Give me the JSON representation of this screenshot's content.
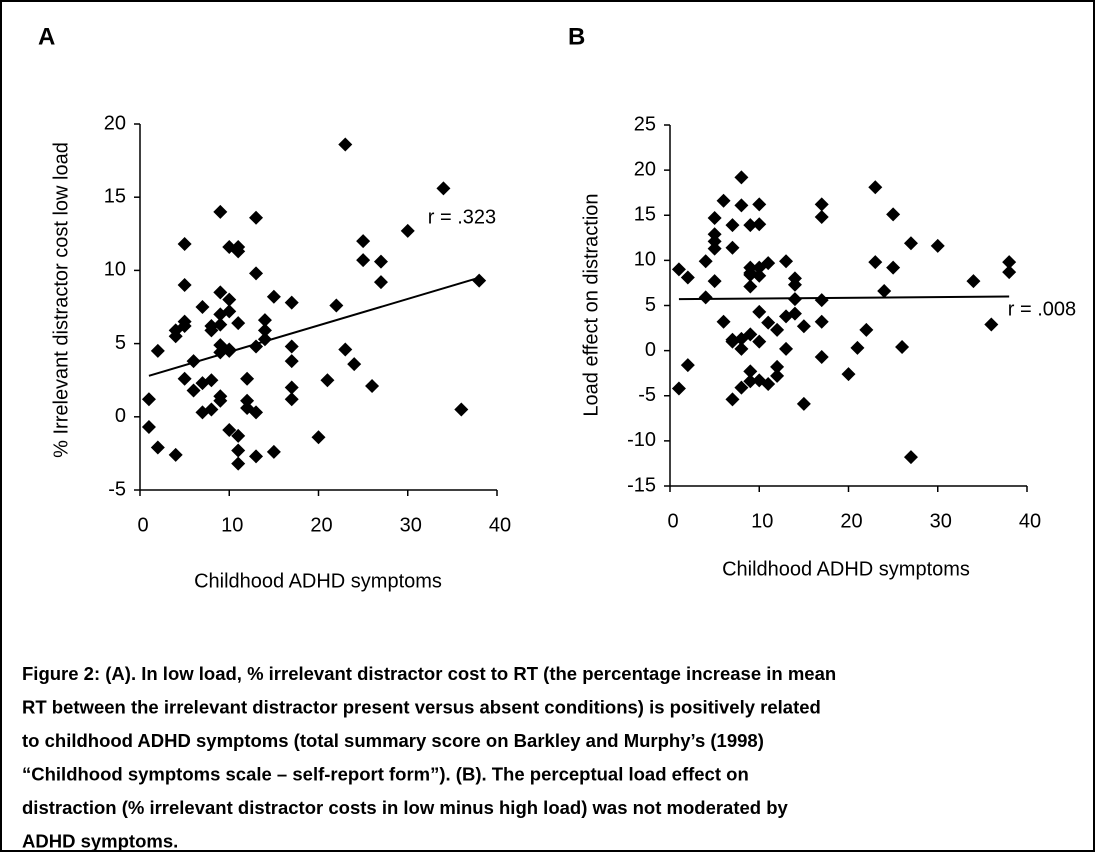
{
  "chart_data": [
    {
      "type": "scatter",
      "panel": "A",
      "xlabel": "Childhood ADHD symptoms",
      "ylabel": "% Irrelevant distractor cost low load",
      "color": "#000000",
      "annotation": "r = .323",
      "trendline": {
        "x": [
          1,
          38
        ],
        "values": [
          2.8,
          9.5
        ]
      },
      "xlim": [
        0,
        40
      ],
      "xticks": [
        0,
        10,
        20,
        30,
        40
      ],
      "ylim": [
        -5,
        20
      ],
      "yticks": [
        -5,
        0,
        5,
        10,
        15,
        20
      ],
      "x": [
        1,
        1,
        2,
        2,
        4,
        4,
        4,
        5,
        5,
        5,
        5,
        5,
        6,
        6,
        7,
        7,
        7,
        8,
        8,
        8,
        8,
        9,
        9,
        9,
        9,
        9,
        9,
        9,
        9,
        10,
        10,
        10,
        10,
        10,
        10,
        11,
        11,
        11,
        11,
        11,
        11,
        12,
        12,
        12,
        13,
        13,
        13,
        13,
        13,
        14,
        14,
        14,
        15,
        15,
        17,
        17,
        17,
        17,
        17,
        20,
        21,
        22,
        23,
        23,
        24,
        25,
        25,
        27,
        27,
        26,
        30,
        34,
        36,
        38
      ],
      "values": [
        1.2,
        -0.7,
        -2.1,
        4.5,
        5.5,
        5.9,
        -2.6,
        11.8,
        9,
        6.5,
        6.2,
        2.6,
        1.8,
        3.8,
        7.5,
        2.3,
        0.3,
        6.2,
        5.9,
        2.5,
        0.5,
        8.5,
        7,
        6.3,
        14,
        1.4,
        4.9,
        4.4,
        1.1,
        8,
        7.2,
        11.6,
        4.6,
        4.5,
        -0.9,
        -1.3,
        11.6,
        11.3,
        6.4,
        -2.3,
        -3.2,
        2.6,
        1.1,
        0.6,
        0.3,
        13.6,
        9.8,
        4.8,
        -2.7,
        6.6,
        5.9,
        5.3,
        8.2,
        -2.4,
        7.8,
        4.8,
        3.8,
        2,
        1.2,
        -1.4,
        2.5,
        7.6,
        18.6,
        4.6,
        3.6,
        12,
        10.7,
        10.6,
        9.2,
        2.1,
        12.7,
        15.6,
        0.5,
        9.3
      ]
    },
    {
      "type": "scatter",
      "panel": "B",
      "xlabel": "Childhood ADHD symptoms",
      "ylabel": "Load effect on distraction",
      "color": "#000000",
      "annotation": "r = .008",
      "trendline": {
        "x": [
          1,
          38
        ],
        "values": [
          5.7,
          6.0
        ]
      },
      "xlim": [
        0,
        40
      ],
      "xticks": [
        0,
        10,
        20,
        30,
        40
      ],
      "ylim": [
        -15,
        25
      ],
      "yticks": [
        -15,
        -10,
        -5,
        0,
        5,
        10,
        15,
        20,
        25
      ],
      "x": [
        1,
        1,
        2,
        2,
        4,
        4,
        5,
        5,
        5,
        5,
        5,
        6,
        6,
        7,
        7,
        7,
        7,
        7,
        8,
        8,
        8,
        8,
        8,
        9,
        9,
        9,
        9,
        9,
        9,
        9,
        9,
        10,
        10,
        10,
        10,
        10,
        10,
        10,
        11,
        11,
        11,
        12,
        12,
        12,
        13,
        13,
        13,
        14,
        14,
        14,
        14,
        15,
        15,
        17,
        17,
        17,
        17,
        17,
        20,
        21,
        22,
        23,
        23,
        24,
        25,
        25,
        26,
        27,
        27,
        30,
        34,
        36,
        38,
        38
      ],
      "values": [
        9,
        -4.2,
        8.1,
        -1.6,
        5.9,
        9.9,
        12.9,
        12.1,
        11.3,
        7.7,
        14.7,
        16.6,
        3.2,
        11.4,
        13.9,
        1.2,
        1,
        -5.4,
        19.2,
        16.1,
        1.3,
        -4.1,
        0.2,
        13.9,
        9.2,
        8.6,
        7.1,
        1.8,
        -3.4,
        -2.3,
        8.4,
        16.2,
        14,
        9.2,
        8.3,
        1,
        4.3,
        -3.3,
        9.7,
        3.1,
        -3.7,
        2.3,
        -1.8,
        -2.8,
        9.9,
        3.8,
        0.2,
        4.1,
        8,
        5.7,
        7.3,
        -5.9,
        2.7,
        16.2,
        14.8,
        5.6,
        3.2,
        -0.7,
        -2.6,
        0.3,
        2.3,
        18.1,
        9.8,
        6.6,
        15.1,
        9.2,
        0.4,
        11.9,
        -11.8,
        11.6,
        7.7,
        2.9,
        9.8,
        8.7
      ]
    }
  ],
  "caption": [
    "Figure 2: (A). In low load, % irrelevant distractor cost to RT (the percentage increase in mean",
    "RT between the irrelevant distractor present versus absent conditions) is positively related",
    "to childhood ADHD symptoms (total summary score on Barkley and Murphy’s (1998)",
    "“Childhood symptoms scale – self-report form”). (B). The perceptual load effect on",
    "distraction (% irrelevant distractor costs in low minus high load) was not moderated by",
    "ADHD symptoms."
  ]
}
